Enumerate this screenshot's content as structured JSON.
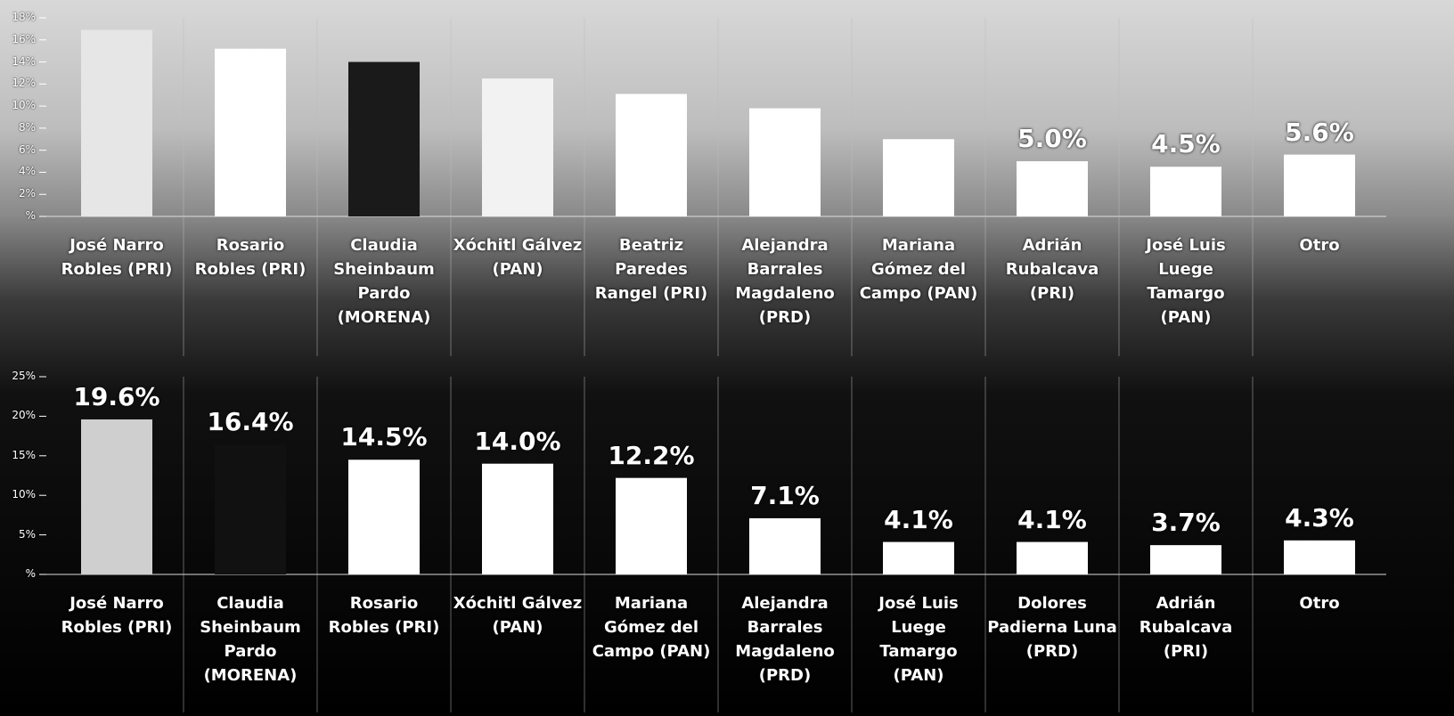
{
  "chart_data": [
    {
      "type": "bar",
      "categories": [
        "José Narro Robles (PRI)",
        "Rosario Robles (PRI)",
        "Claudia Sheinbaum Pardo (MORENA)",
        "Xóchitl Gálvez (PAN)",
        "Beatriz Paredes Rangel (PRI)",
        "Alejandra Barrales Magdaleno (PRD)",
        "Mariana Gómez del Campo (PAN)",
        "Adrián Rubalcava (PRI)",
        "José Luis Luege Tamargo (PAN)",
        "Otro"
      ],
      "values": [
        16.9,
        15.2,
        14.0,
        12.5,
        11.1,
        9.8,
        7.0,
        5.0,
        4.5,
        5.6
      ],
      "value_labels": [
        null,
        null,
        null,
        null,
        null,
        null,
        null,
        "5.0%",
        "4.5%",
        "5.6%"
      ],
      "colors": [
        "#e6e6e6",
        "#ffffff",
        "#1a1a1a",
        "#f2f2f2",
        "#ffffff",
        "#ffffff",
        "#ffffff",
        "#ffffff",
        "#ffffff",
        "#ffffff"
      ],
      "ylim": [
        0,
        18
      ],
      "yticks": [
        {
          "value": 0,
          "label": "%"
        },
        {
          "value": 2,
          "label": "2%"
        },
        {
          "value": 4,
          "label": "4%"
        },
        {
          "value": 6,
          "label": "6%"
        },
        {
          "value": 8,
          "label": "8%"
        },
        {
          "value": 10,
          "label": "10%"
        },
        {
          "value": 12,
          "label": "12%"
        },
        {
          "value": 14,
          "label": "14%"
        },
        {
          "value": 16,
          "label": "16%"
        },
        {
          "value": 18,
          "label": "18%"
        }
      ]
    },
    {
      "type": "bar",
      "categories": [
        "José Narro Robles (PRI)",
        "Claudia Sheinbaum Pardo (MORENA)",
        "Rosario Robles (PRI)",
        "Xóchitl Gálvez (PAN)",
        "Mariana Gómez del Campo (PAN)",
        "Alejandra Barrales Magdaleno (PRD)",
        "José Luis Luege Tamargo (PAN)",
        "Dolores Padierna Luna (PRD)",
        "Adrián Rubalcava (PRI)",
        "Otro"
      ],
      "values": [
        19.6,
        16.4,
        14.5,
        14.0,
        12.2,
        7.1,
        4.1,
        4.1,
        3.7,
        4.3
      ],
      "value_labels": [
        "19.6%",
        "16.4%",
        "14.5%",
        "14.0%",
        "12.2%",
        "7.1%",
        "4.1%",
        "4.1%",
        "3.7%",
        "4.3%"
      ],
      "colors": [
        "#cfcfcf",
        "#111111",
        "#ffffff",
        "#ffffff",
        "#ffffff",
        "#ffffff",
        "#ffffff",
        "#ffffff",
        "#ffffff",
        "#ffffff"
      ],
      "ylim": [
        0,
        25
      ],
      "yticks": [
        {
          "value": 0,
          "label": "%"
        },
        {
          "value": 5,
          "label": "5%"
        },
        {
          "value": 10,
          "label": "10%"
        },
        {
          "value": 15,
          "label": "15%"
        },
        {
          "value": 20,
          "label": "20%"
        },
        {
          "value": 25,
          "label": "25%"
        }
      ]
    }
  ]
}
